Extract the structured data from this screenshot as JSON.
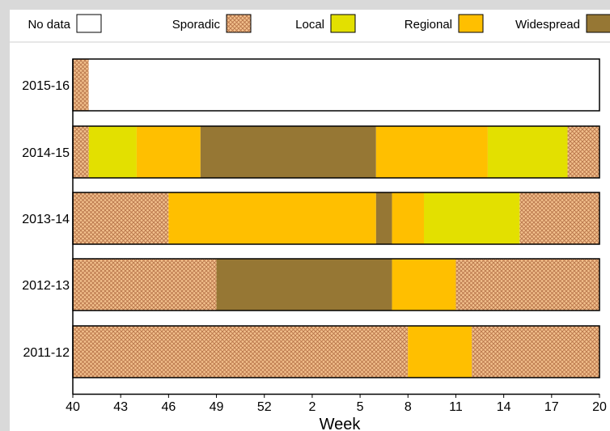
{
  "colors": {
    "no_data": "#ffffff",
    "sporadic_base": "#f2c08c",
    "sporadic_hatch": "#b8754a",
    "local": "#e3e000",
    "regional": "#ffbf00",
    "widespread": "#967734",
    "border": "#000000"
  },
  "chart_data": {
    "type": "bar",
    "orientation": "horizontal-stacked-timeline",
    "legend": [
      {
        "key": "no_data",
        "label": "No data"
      },
      {
        "key": "sporadic",
        "label": "Sporadic"
      },
      {
        "key": "local",
        "label": "Local"
      },
      {
        "key": "regional",
        "label": "Regional"
      },
      {
        "key": "widespread",
        "label": "Widespread"
      }
    ],
    "xlabel": "Week",
    "x_ticks": [
      "40",
      "43",
      "46",
      "49",
      "52",
      "2",
      "5",
      "8",
      "11",
      "14",
      "17",
      "20"
    ],
    "x_range_index": [
      0,
      33
    ],
    "seasons": [
      {
        "label": "2015-16",
        "segments": [
          {
            "level": "sporadic",
            "start": 0,
            "end": 1
          },
          {
            "level": "no_data",
            "start": 1,
            "end": 33
          }
        ]
      },
      {
        "label": "2014-15",
        "segments": [
          {
            "level": "sporadic",
            "start": 0,
            "end": 1
          },
          {
            "level": "local",
            "start": 1,
            "end": 4
          },
          {
            "level": "regional",
            "start": 4,
            "end": 8
          },
          {
            "level": "widespread",
            "start": 8,
            "end": 19
          },
          {
            "level": "regional",
            "start": 19,
            "end": 26
          },
          {
            "level": "local",
            "start": 26,
            "end": 31
          },
          {
            "level": "sporadic",
            "start": 31,
            "end": 33
          }
        ]
      },
      {
        "label": "2013-14",
        "segments": [
          {
            "level": "sporadic",
            "start": 0,
            "end": 6
          },
          {
            "level": "regional",
            "start": 6,
            "end": 19
          },
          {
            "level": "widespread",
            "start": 19,
            "end": 20
          },
          {
            "level": "regional",
            "start": 20,
            "end": 22
          },
          {
            "level": "local",
            "start": 22,
            "end": 28
          },
          {
            "level": "sporadic",
            "start": 28,
            "end": 33
          }
        ]
      },
      {
        "label": "2012-13",
        "segments": [
          {
            "level": "sporadic",
            "start": 0,
            "end": 9
          },
          {
            "level": "widespread",
            "start": 9,
            "end": 20
          },
          {
            "level": "regional",
            "start": 20,
            "end": 24
          },
          {
            "level": "sporadic",
            "start": 24,
            "end": 33
          }
        ]
      },
      {
        "label": "2011-12",
        "segments": [
          {
            "level": "sporadic",
            "start": 0,
            "end": 21
          },
          {
            "level": "regional",
            "start": 21,
            "end": 25
          },
          {
            "level": "sporadic",
            "start": 25,
            "end": 33
          }
        ]
      }
    ]
  }
}
